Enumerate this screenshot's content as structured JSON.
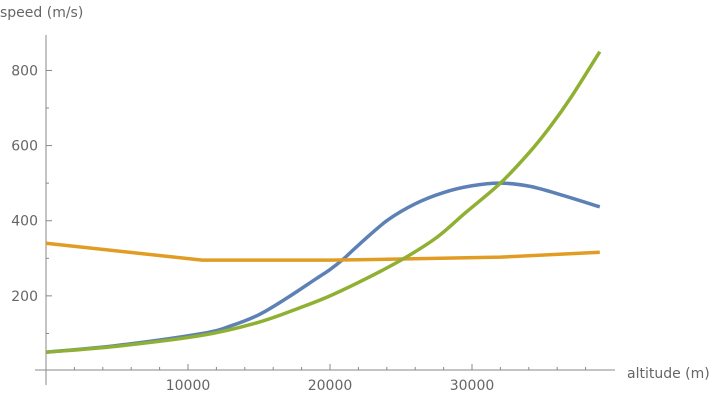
{
  "chart_data": {
    "type": "line",
    "title": "",
    "xlabel": "altitude (m)",
    "ylabel": "speed (m/s)",
    "xlim": [
      0,
      39000
    ],
    "ylim": [
      0,
      880
    ],
    "xticks": [
      10000,
      20000,
      30000
    ],
    "xtick_labels": [
      "10000",
      "20000",
      "30000"
    ],
    "yticks": [
      200,
      400,
      600,
      800
    ],
    "ytick_labels": [
      "200",
      "400",
      "600",
      "800"
    ],
    "grid": false,
    "series": [
      {
        "name": "blue",
        "color": "#5E81B5",
        "x": [
          0,
          5000,
          11000,
          13000,
          15000,
          17000,
          19000,
          20000,
          21000,
          22000,
          24000,
          26000,
          28000,
          30000,
          32000,
          34000,
          36000,
          39000
        ],
        "y": [
          50,
          68,
          100,
          120,
          150,
          195,
          245,
          270,
          300,
          335,
          400,
          445,
          475,
          493,
          500,
          492,
          472,
          437
        ]
      },
      {
        "name": "orange",
        "color": "#E19C24",
        "x": [
          0,
          11000,
          20000,
          25000,
          32000,
          39000
        ],
        "y": [
          340,
          295,
          295,
          298,
          303,
          316
        ]
      },
      {
        "name": "green",
        "color": "#8FB032",
        "x": [
          0,
          5000,
          11000,
          15000,
          18000,
          20000,
          22500,
          25000,
          27500,
          29500,
          32000,
          34000,
          35500,
          37000,
          39000
        ],
        "y": [
          50,
          66,
          95,
          130,
          170,
          200,
          245,
          295,
          355,
          420,
          500,
          580,
          650,
          730,
          850
        ]
      }
    ]
  }
}
